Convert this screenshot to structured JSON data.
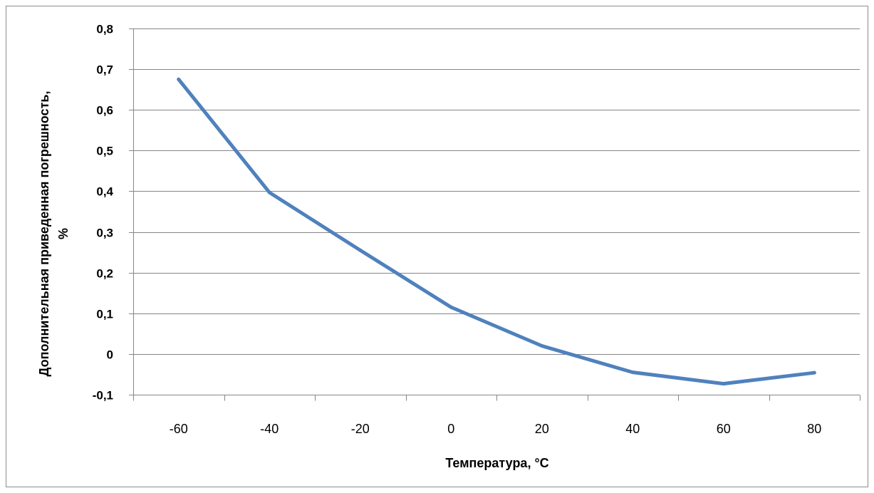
{
  "chart_data": {
    "type": "line",
    "x": [
      -60,
      -40,
      -20,
      0,
      20,
      40,
      60,
      80
    ],
    "series": [
      {
        "values": [
          0.675,
          0.397,
          0.255,
          0.115,
          0.02,
          -0.045,
          -0.073,
          -0.046
        ],
        "color": "#4f81bd"
      }
    ],
    "xlabel": "Температура, °С",
    "ylabel_lines": [
      "Дополнительная приведенная погрешность,",
      "%"
    ],
    "x_tick_labels": [
      "-60",
      "-40",
      "-20",
      "0",
      "20",
      "40",
      "60",
      "80"
    ],
    "y_ticks": [
      -0.1,
      0,
      0.1,
      0.2,
      0.3,
      0.4,
      0.5,
      0.6,
      0.7,
      0.8
    ],
    "y_tick_labels": [
      "-0,1",
      "0",
      "0,1",
      "0,2",
      "0,3",
      "0,4",
      "0,5",
      "0,6",
      "0,7",
      "0,8"
    ],
    "ylim": [
      -0.1,
      0.8
    ],
    "grid": true,
    "legend": false,
    "colors": {
      "line": "#4f81bd",
      "gridline": "#868686",
      "frame": "#8c8c8c"
    }
  }
}
